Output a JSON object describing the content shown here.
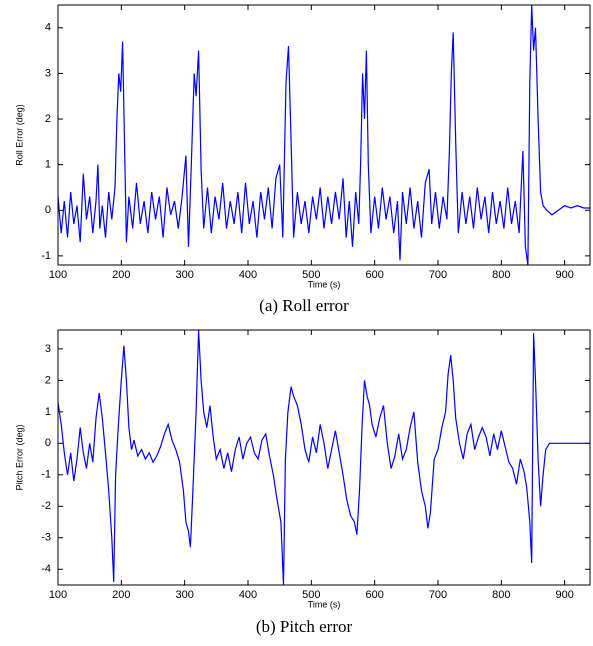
{
  "chart_data": [
    {
      "type": "line",
      "caption": "(a)  Roll  error",
      "xlabel": "Time (s)",
      "ylabel": "Roll Error (deg)",
      "xlim": [
        100,
        940
      ],
      "xticks": [
        100,
        200,
        300,
        400,
        500,
        600,
        700,
        800,
        900
      ],
      "ylim": [
        -1.2,
        4.5
      ],
      "yticks": [
        -1,
        0,
        1,
        2,
        3,
        4
      ],
      "series": [
        {
          "name": "Roll error",
          "color": "#0000ff",
          "x": [
            100,
            105,
            110,
            115,
            120,
            125,
            130,
            135,
            140,
            145,
            150,
            155,
            160,
            163,
            166,
            170,
            175,
            180,
            185,
            190,
            193,
            196,
            199,
            202,
            205,
            208,
            212,
            218,
            224,
            230,
            236,
            242,
            248,
            254,
            260,
            266,
            272,
            278,
            284,
            290,
            296,
            302,
            306,
            310,
            315,
            318,
            322,
            326,
            330,
            336,
            342,
            348,
            354,
            360,
            366,
            372,
            378,
            384,
            390,
            396,
            402,
            408,
            414,
            420,
            426,
            432,
            438,
            444,
            450,
            455,
            460,
            464,
            468,
            472,
            478,
            484,
            490,
            496,
            502,
            508,
            514,
            520,
            526,
            532,
            538,
            544,
            550,
            555,
            560,
            565,
            570,
            575,
            578,
            581,
            584,
            587,
            590,
            594,
            600,
            606,
            612,
            618,
            624,
            630,
            636,
            640,
            644,
            650,
            656,
            662,
            668,
            674,
            680,
            686,
            690,
            696,
            702,
            708,
            714,
            718,
            721,
            724,
            728,
            732,
            738,
            744,
            750,
            756,
            762,
            768,
            774,
            780,
            786,
            792,
            798,
            804,
            810,
            816,
            822,
            828,
            834,
            838,
            842,
            845,
            848,
            851,
            854,
            858,
            862,
            866,
            872,
            880,
            890,
            900,
            910,
            920,
            930,
            940
          ],
          "values": [
            0.3,
            -0.5,
            0.2,
            -0.6,
            0.4,
            -0.3,
            0.1,
            -0.7,
            0.8,
            -0.2,
            0.3,
            -0.5,
            0.2,
            1.0,
            -0.4,
            0.1,
            -0.6,
            0.4,
            -0.2,
            0.5,
            2.0,
            3.0,
            2.6,
            3.7,
            1.5,
            -0.7,
            0.3,
            -0.4,
            0.6,
            -0.3,
            0.2,
            -0.5,
            0.4,
            -0.2,
            0.3,
            -0.6,
            0.5,
            -0.1,
            0.2,
            -0.4,
            0.3,
            1.2,
            -0.8,
            0.8,
            3.0,
            2.5,
            3.5,
            0.9,
            -0.4,
            0.5,
            -0.5,
            0.3,
            -0.2,
            0.6,
            -0.4,
            0.2,
            -0.3,
            0.4,
            -0.5,
            0.6,
            -0.3,
            0.2,
            -0.6,
            0.4,
            -0.2,
            0.5,
            -0.4,
            0.7,
            1.0,
            -0.6,
            2.8,
            3.6,
            1.5,
            -0.6,
            0.4,
            -0.3,
            0.2,
            -0.5,
            0.3,
            -0.2,
            0.5,
            -0.4,
            0.3,
            -0.3,
            0.4,
            -0.2,
            0.7,
            -0.6,
            0.2,
            -0.8,
            0.4,
            -0.3,
            1.1,
            3.0,
            2.0,
            3.5,
            1.0,
            -0.5,
            0.3,
            -0.4,
            0.5,
            -0.2,
            0.3,
            -0.5,
            0.2,
            -1.1,
            0.4,
            -0.3,
            0.5,
            -0.4,
            0.2,
            -0.6,
            0.6,
            0.9,
            -0.3,
            0.4,
            -0.4,
            0.3,
            -0.2,
            1.3,
            3.0,
            3.9,
            1.5,
            -0.5,
            0.4,
            -0.3,
            0.3,
            -0.4,
            0.5,
            -0.2,
            0.3,
            -0.5,
            0.4,
            -0.3,
            0.2,
            -0.4,
            0.5,
            -0.3,
            0.2,
            -0.5,
            1.3,
            -0.8,
            -1.2,
            2.8,
            4.5,
            3.5,
            4.0,
            2.0,
            0.4,
            0.1,
            0.0,
            -0.1,
            0.0,
            0.1,
            0.05,
            0.1,
            0.05,
            0.05
          ]
        }
      ]
    },
    {
      "type": "line",
      "caption": "(b)  Pitch  error",
      "xlabel": "Time (s)",
      "ylabel": "Pitch Error (deg)",
      "xlim": [
        100,
        940
      ],
      "xticks": [
        100,
        200,
        300,
        400,
        500,
        600,
        700,
        800,
        900
      ],
      "ylim": [
        -4.5,
        3.6
      ],
      "yticks": [
        -4,
        -3,
        -2,
        -1,
        0,
        1,
        2,
        3
      ],
      "series": [
        {
          "name": "Pitch error",
          "color": "#0000ff",
          "x": [
            100,
            105,
            110,
            115,
            120,
            125,
            130,
            135,
            140,
            145,
            150,
            155,
            160,
            165,
            170,
            175,
            180,
            185,
            188,
            191,
            195,
            200,
            204,
            208,
            212,
            216,
            220,
            226,
            232,
            238,
            244,
            250,
            256,
            262,
            268,
            274,
            280,
            286,
            292,
            298,
            302,
            306,
            309,
            313,
            318,
            322,
            326,
            330,
            335,
            340,
            345,
            350,
            356,
            362,
            368,
            374,
            380,
            386,
            392,
            398,
            404,
            410,
            416,
            422,
            428,
            434,
            440,
            446,
            452,
            456,
            459,
            463,
            468,
            472,
            478,
            484,
            490,
            496,
            502,
            508,
            514,
            520,
            526,
            532,
            538,
            544,
            550,
            556,
            562,
            568,
            572,
            576,
            580,
            584,
            588,
            592,
            596,
            602,
            608,
            614,
            620,
            626,
            632,
            638,
            644,
            650,
            656,
            662,
            668,
            674,
            680,
            684,
            688,
            694,
            700,
            706,
            712,
            716,
            720,
            724,
            728,
            734,
            740,
            746,
            752,
            758,
            764,
            770,
            776,
            782,
            788,
            794,
            800,
            806,
            812,
            818,
            824,
            830,
            836,
            840,
            845,
            848,
            851,
            854,
            858,
            862,
            866,
            870,
            876,
            885,
            900,
            920,
            940
          ],
          "values": [
            1.3,
            0.6,
            -0.3,
            -1.0,
            -0.3,
            -1.2,
            -0.5,
            0.5,
            -0.3,
            -0.8,
            0.0,
            -0.6,
            0.8,
            1.6,
            0.8,
            -0.3,
            -1.5,
            -3.0,
            -4.4,
            -1.0,
            0.5,
            2.0,
            3.1,
            2.0,
            0.5,
            -0.2,
            0.1,
            -0.4,
            -0.2,
            -0.5,
            -0.3,
            -0.6,
            -0.4,
            -0.1,
            0.3,
            0.6,
            0.1,
            -0.2,
            -0.6,
            -1.5,
            -2.5,
            -2.8,
            -3.3,
            -1.5,
            1.0,
            3.6,
            2.0,
            1.0,
            0.5,
            1.2,
            0.2,
            -0.5,
            -0.2,
            -0.8,
            -0.3,
            -0.9,
            -0.2,
            0.2,
            -0.5,
            0.0,
            0.2,
            -0.3,
            -0.5,
            0.1,
            0.3,
            -0.4,
            -1.0,
            -1.8,
            -2.5,
            -4.5,
            -0.5,
            1.0,
            1.8,
            1.5,
            1.2,
            0.6,
            -0.2,
            -0.6,
            0.2,
            -0.3,
            0.6,
            0.0,
            -0.8,
            -0.2,
            0.4,
            -0.3,
            -1.0,
            -1.8,
            -2.3,
            -2.5,
            -2.9,
            -1.5,
            0.5,
            2.0,
            1.5,
            1.2,
            0.6,
            0.2,
            0.8,
            1.2,
            0.0,
            -0.8,
            -0.4,
            0.3,
            -0.5,
            -0.2,
            0.5,
            1.0,
            -0.6,
            -1.5,
            -2.0,
            -2.7,
            -2.2,
            -0.5,
            -0.2,
            0.5,
            1.0,
            2.2,
            2.8,
            2.0,
            0.8,
            0.0,
            -0.5,
            0.3,
            0.6,
            -0.2,
            0.2,
            0.5,
            0.2,
            -0.4,
            0.3,
            -0.2,
            0.4,
            -0.1,
            -0.6,
            -0.8,
            -1.3,
            -0.5,
            -0.9,
            -1.4,
            -2.5,
            -3.8,
            3.5,
            2.0,
            -0.5,
            -2.0,
            -1.0,
            -0.2,
            0.0,
            0.0,
            0.0,
            0.0,
            0.0
          ]
        }
      ]
    }
  ]
}
